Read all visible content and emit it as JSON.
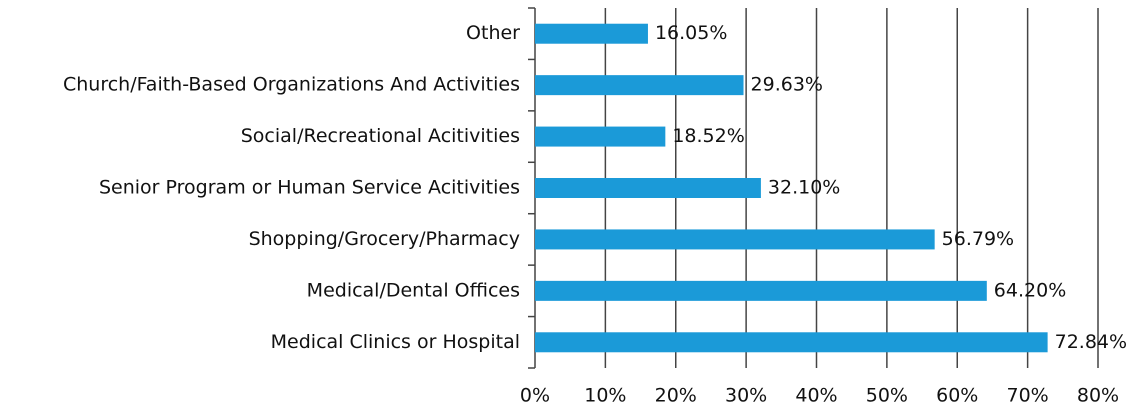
{
  "chart_data": {
    "type": "bar",
    "orientation": "horizontal",
    "categories": [
      "Other",
      "Church/Faith-Based Organizations And Activities",
      "Social/Recreational Acitivities",
      "Senior Program or Human Service Acitivities",
      "Shopping/Grocery/Pharmacy",
      "Medical/Dental Offices",
      "Medical Clinics or Hospital"
    ],
    "values": [
      16.05,
      29.63,
      18.52,
      32.1,
      56.79,
      64.2,
      72.84
    ],
    "value_labels": [
      "16.05%",
      "29.63%",
      "18.52%",
      "32.10%",
      "56.79%",
      "64.20%",
      "72.84%"
    ],
    "color": "#1b9ad8",
    "xlim": [
      0,
      80
    ],
    "xticks": [
      {
        "value": 0,
        "label": "0%"
      },
      {
        "value": 10,
        "label": "10%"
      },
      {
        "value": 20,
        "label": "20%"
      },
      {
        "value": 30,
        "label": "30%"
      },
      {
        "value": 40,
        "label": "40%"
      },
      {
        "value": 50,
        "label": "50%"
      },
      {
        "value": 60,
        "label": "60%"
      },
      {
        "value": 70,
        "label": "70%"
      },
      {
        "value": 80,
        "label": "80%"
      }
    ],
    "grid": true
  }
}
